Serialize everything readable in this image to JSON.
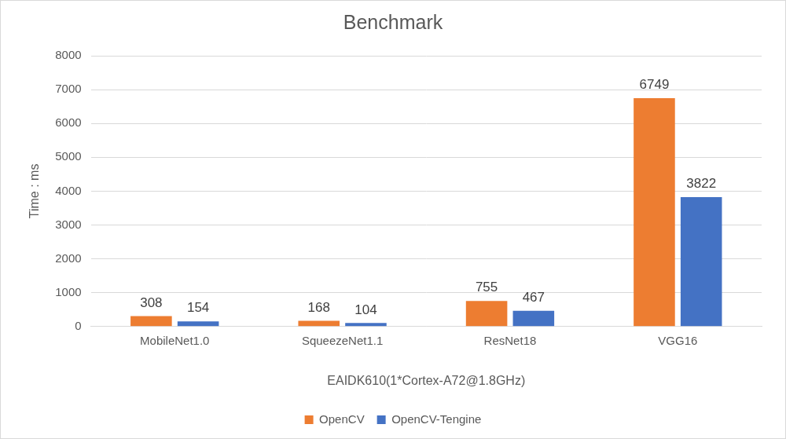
{
  "chart_data": {
    "type": "bar",
    "title": "Benchmark",
    "x_label": "EAIDK610(1*Cortex-A72@1.8GHz)",
    "y_label": "Time : ms",
    "categories": [
      "MobileNet1.0",
      "SqueezeNet1.1",
      "ResNet18",
      "VGG16"
    ],
    "series": [
      {
        "name": "OpenCV",
        "color": "#ed7d31",
        "values": [
          308,
          168,
          755,
          6749
        ]
      },
      {
        "name": "OpenCV-Tengine",
        "color": "#4472c4",
        "values": [
          154,
          104,
          467,
          3822
        ]
      }
    ],
    "ylim": [
      0,
      8000
    ],
    "yticks": [
      0,
      1000,
      2000,
      3000,
      4000,
      5000,
      6000,
      7000,
      8000
    ],
    "grid": true,
    "legend": "bottom",
    "data_labels": true
  }
}
